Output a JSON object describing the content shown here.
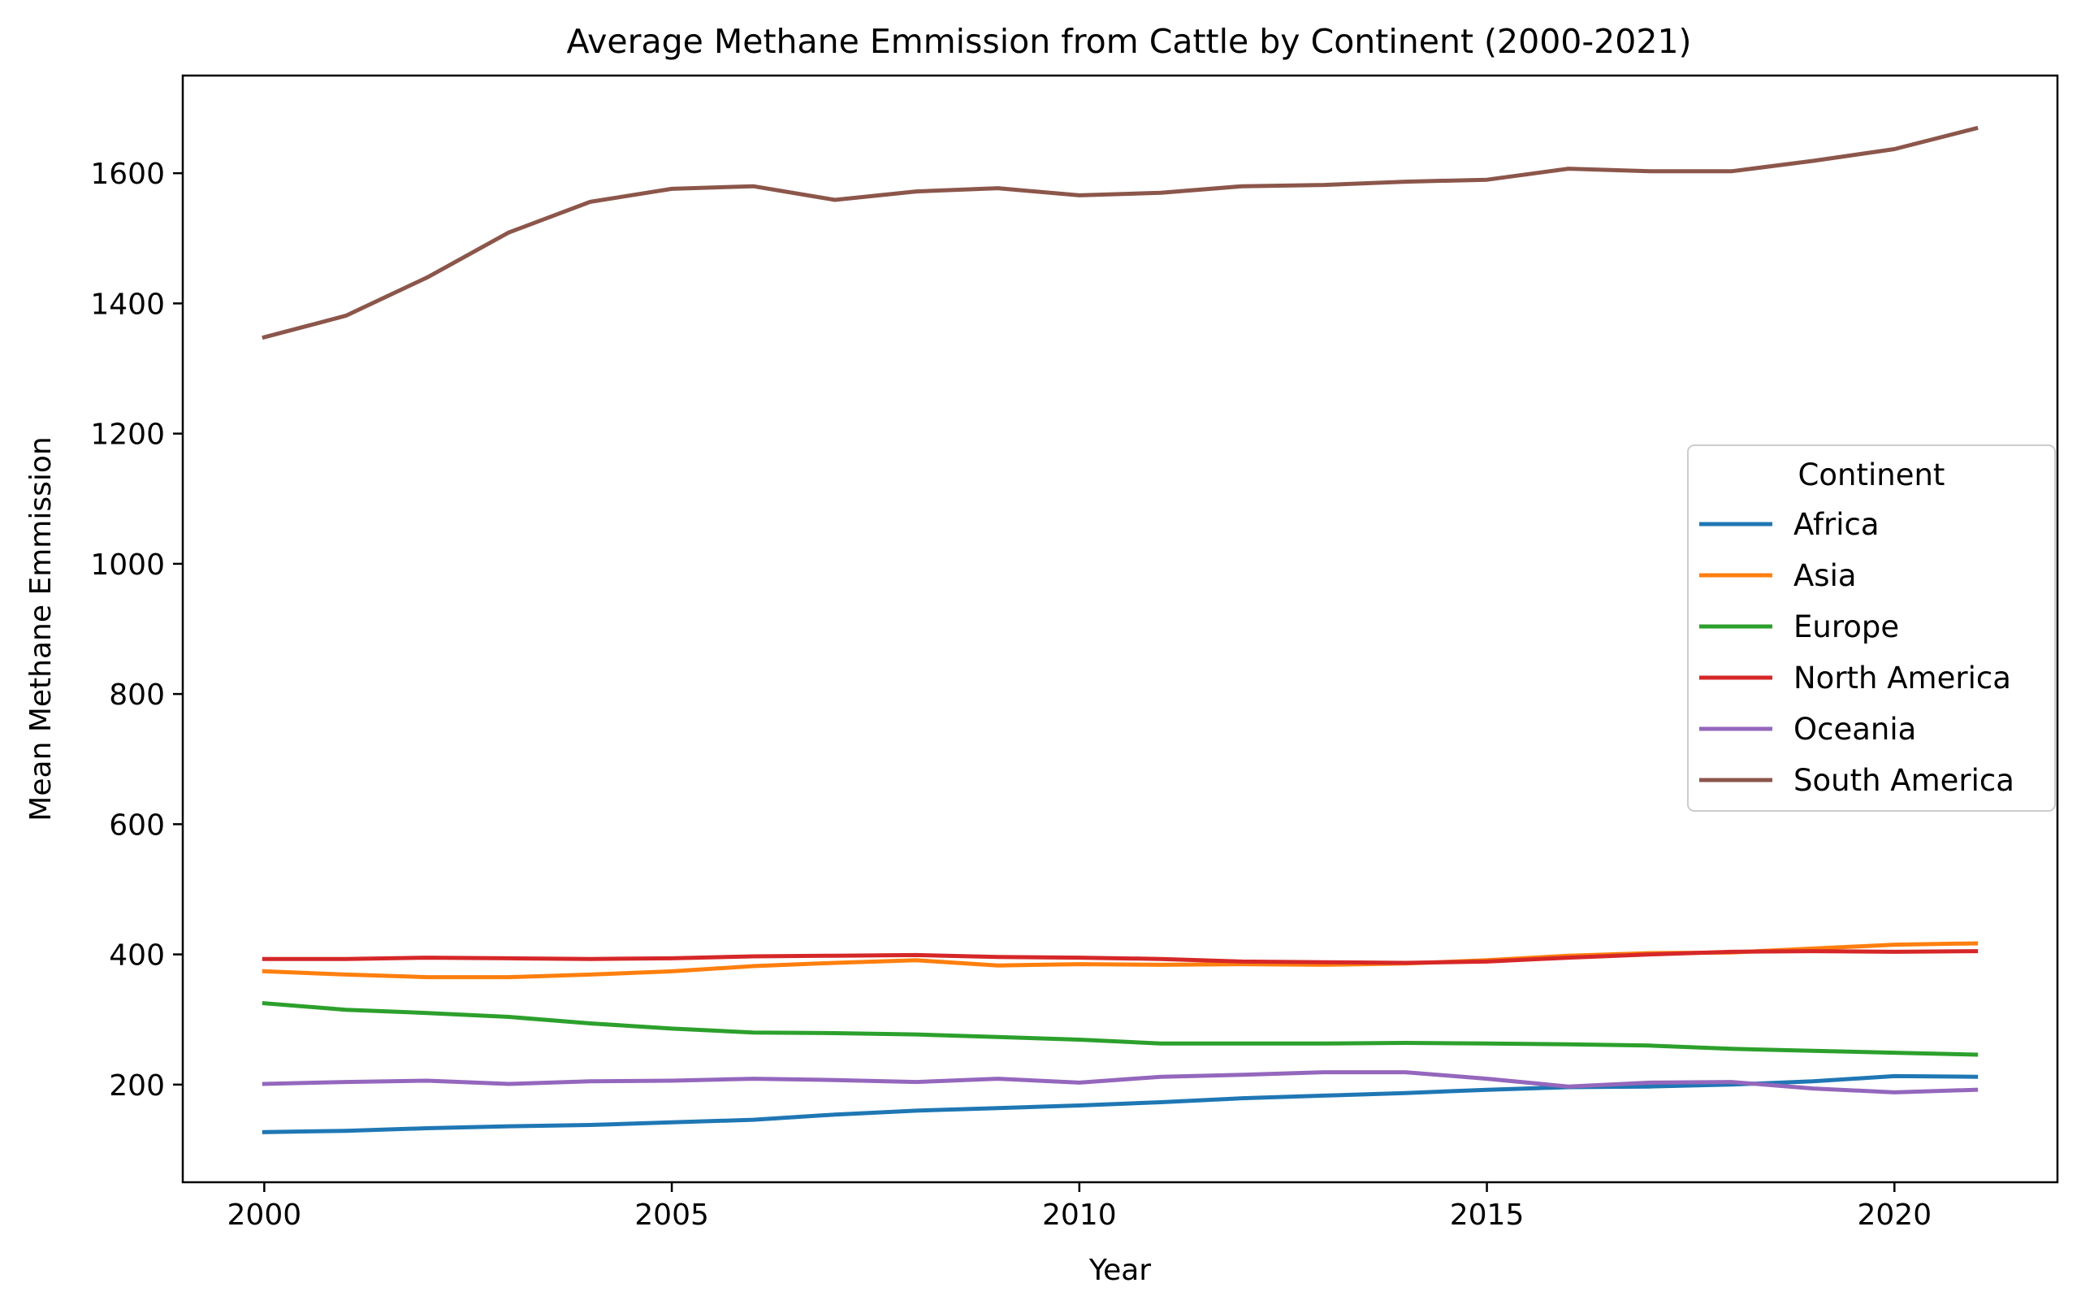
{
  "chart_data": {
    "type": "line",
    "title": "Average Methane Emmission from Cattle by Continent (2000-2021)",
    "xlabel": "Year",
    "ylabel": "Mean Methane Emmission",
    "xlim": [
      1999,
      2022
    ],
    "ylim": [
      50,
      1750
    ],
    "xticks": [
      2000,
      2005,
      2010,
      2015,
      2020
    ],
    "yticks": [
      200,
      400,
      600,
      800,
      1000,
      1200,
      1400,
      1600
    ],
    "grid": false,
    "legend": {
      "title": "Continent",
      "placement": "center-right"
    },
    "x": [
      2000,
      2001,
      2002,
      2003,
      2004,
      2005,
      2006,
      2007,
      2008,
      2009,
      2010,
      2011,
      2012,
      2013,
      2014,
      2015,
      2016,
      2017,
      2018,
      2019,
      2020,
      2021
    ],
    "series": [
      {
        "name": "Africa",
        "color": "#1f77b4",
        "values": [
          127,
          129,
          133,
          136,
          138,
          142,
          146,
          154,
          160,
          164,
          168,
          173,
          179,
          183,
          187,
          192,
          196,
          197,
          200,
          205,
          213,
          212
        ]
      },
      {
        "name": "Asia",
        "color": "#ff7f0e",
        "values": [
          374,
          369,
          365,
          365,
          369,
          374,
          382,
          387,
          391,
          383,
          385,
          384,
          385,
          384,
          386,
          391,
          398,
          402,
          403,
          409,
          415,
          417
        ]
      },
      {
        "name": "Europe",
        "color": "#2ca02c",
        "values": [
          325,
          315,
          310,
          304,
          294,
          286,
          280,
          279,
          277,
          273,
          269,
          263,
          263,
          263,
          264,
          263,
          262,
          260,
          255,
          252,
          249,
          246
        ]
      },
      {
        "name": "North America",
        "color": "#d62728",
        "values": [
          393,
          393,
          395,
          394,
          393,
          394,
          397,
          398,
          399,
          396,
          395,
          393,
          389,
          388,
          387,
          389,
          395,
          400,
          404,
          405,
          404,
          405
        ]
      },
      {
        "name": "Oceania",
        "color": "#9467bd",
        "values": [
          201,
          204,
          206,
          201,
          205,
          206,
          209,
          207,
          204,
          209,
          203,
          212,
          215,
          219,
          219,
          209,
          197,
          203,
          204,
          194,
          188,
          192
        ]
      },
      {
        "name": "South America",
        "color": "#8c564b",
        "values": [
          1348,
          1381,
          1440,
          1509,
          1556,
          1576,
          1580,
          1559,
          1572,
          1577,
          1566,
          1570,
          1580,
          1582,
          1587,
          1590,
          1607,
          1603,
          1603,
          1619,
          1637,
          1669
        ]
      }
    ]
  }
}
